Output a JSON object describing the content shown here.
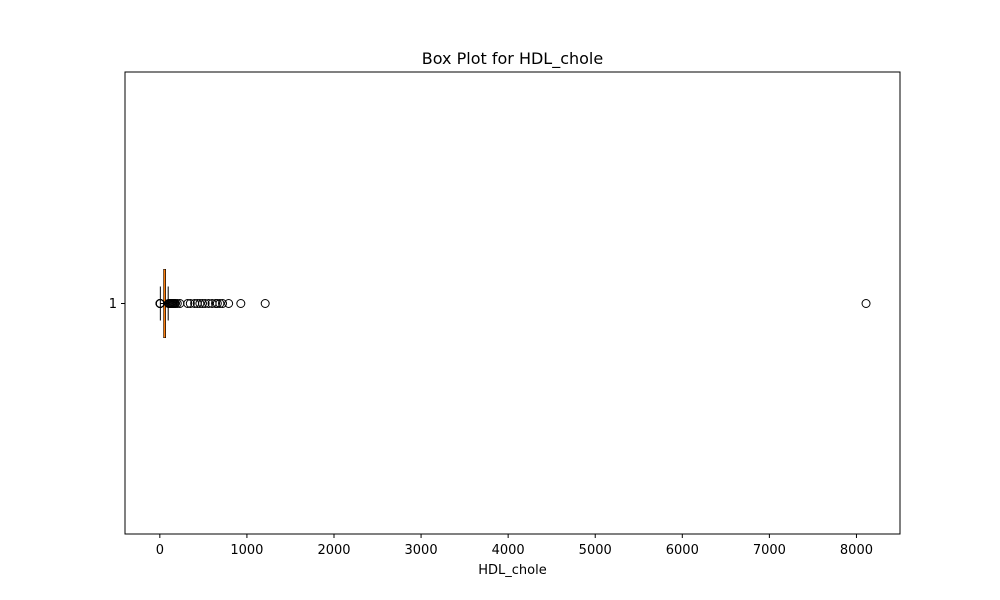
{
  "chart_data": {
    "type": "box",
    "orientation": "horizontal",
    "title": "Box Plot for HDL_chole",
    "xlabel": "HDL_chole",
    "ylabel": "",
    "xlim": [
      -400,
      8500
    ],
    "xticks": [
      0,
      1000,
      2000,
      3000,
      4000,
      5000,
      6000,
      7000,
      8000
    ],
    "yticks": [
      "1"
    ],
    "box": {
      "category": "1",
      "whisker_low": 6,
      "q1": 45,
      "median": 54,
      "q3": 65,
      "whisker_high": 96
    },
    "outliers": [
      1,
      2,
      3,
      4,
      5,
      100,
      110,
      120,
      130,
      140,
      150,
      160,
      170,
      180,
      200,
      230,
      320,
      350,
      400,
      430,
      460,
      490,
      520,
      560,
      600,
      640,
      660,
      690,
      720,
      790,
      930,
      1210,
      8110
    ],
    "colors": {
      "median": "#ff7f0e",
      "box": "#000000",
      "background": "#ffffff"
    },
    "grid": false,
    "legend": "none"
  }
}
